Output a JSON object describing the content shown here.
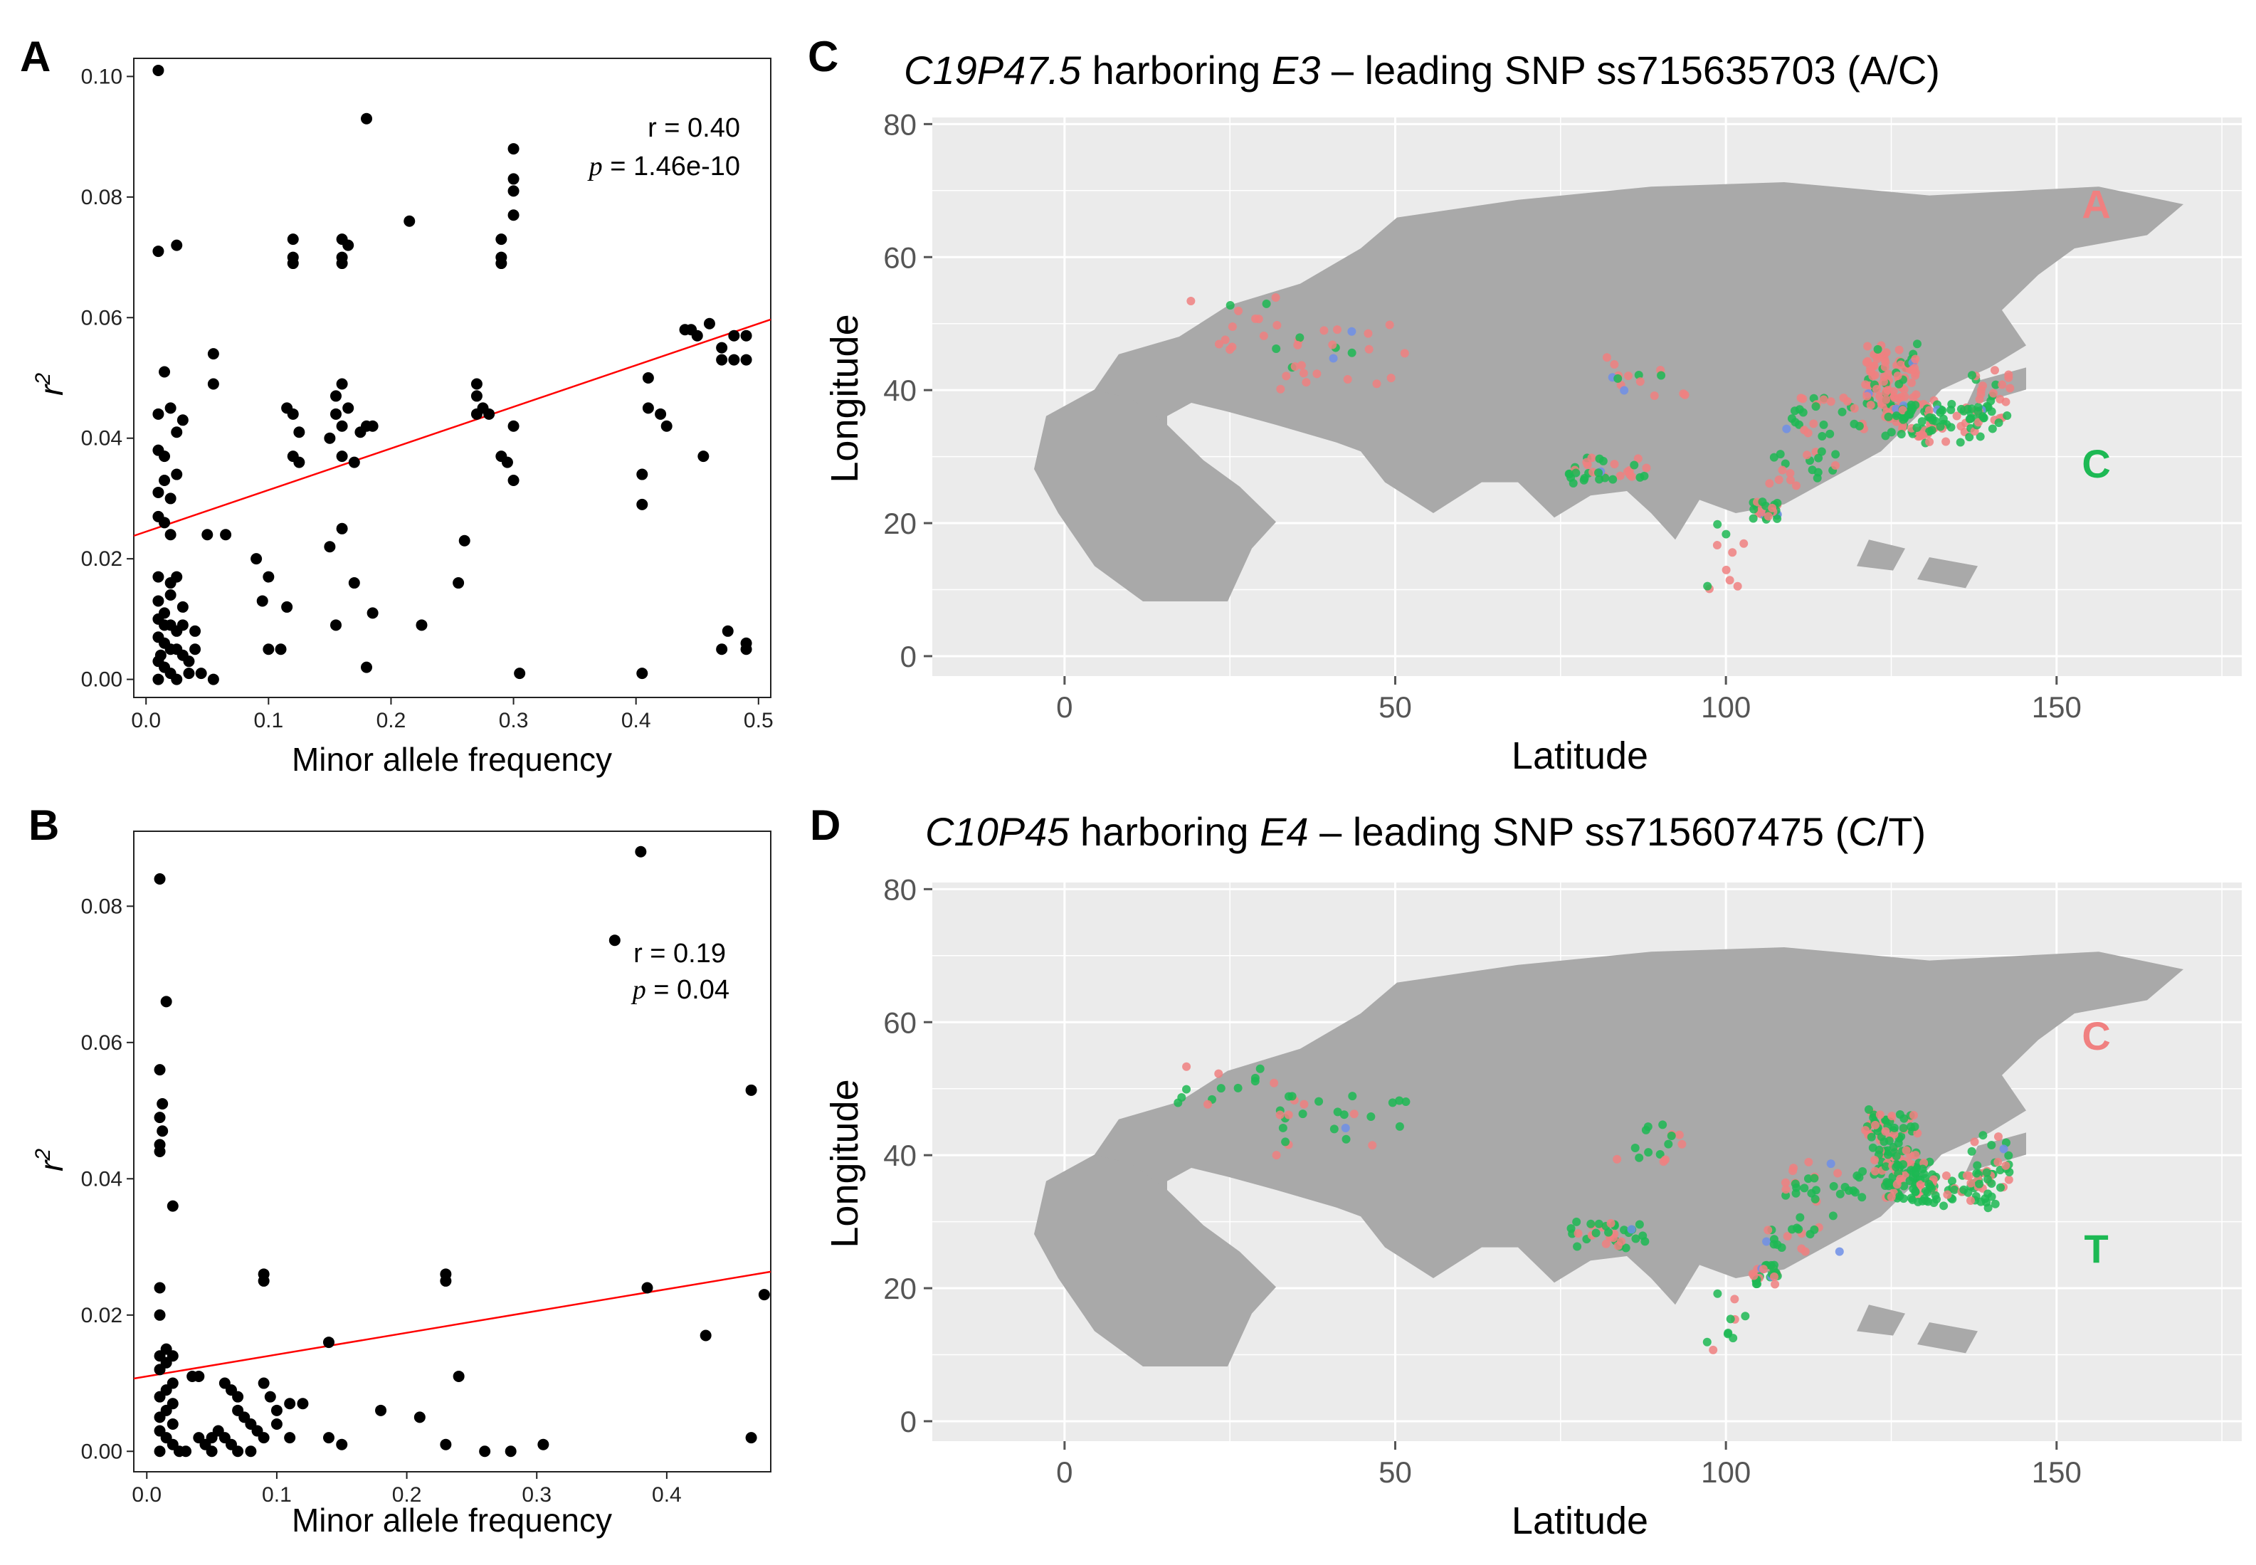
{
  "panels": {
    "A": "A",
    "B": "B",
    "C": "C",
    "D": "D"
  },
  "colors": {
    "red_allele": "#f08080",
    "green_allele": "#1db954",
    "blue_allele": "#6f8fe8",
    "land": "#a9a9a9",
    "map_bg": "#ebebeb",
    "fit_line": "#ff0000"
  },
  "chart_data": [
    {
      "panel": "A",
      "type": "scatter",
      "xlabel": "Minor allele frequency",
      "ylabel": "r",
      "ylabel_sup": "2",
      "xlim": [
        -0.01,
        0.51
      ],
      "ylim": [
        -0.003,
        0.103
      ],
      "xticks": [
        0,
        0.1,
        0.2,
        0.3,
        0.4,
        0.5
      ],
      "xtick_labels": [
        "0.0",
        "0.1",
        "0.2",
        "0.3",
        "0.4",
        "0.5"
      ],
      "yticks": [
        0,
        0.02,
        0.04,
        0.06,
        0.08,
        0.1
      ],
      "ytick_labels": [
        "0.00",
        "0.02",
        "0.04",
        "0.06",
        "0.08",
        "0.10"
      ],
      "stats": {
        "r_text": "r = 0.40",
        "p_symbol": "p",
        "p_value": " = 1.46e-10"
      },
      "fit": {
        "intercept": 0.0245,
        "slope": 0.069
      },
      "points": [
        [
          0.01,
          0.101
        ],
        [
          0.01,
          0.071
        ],
        [
          0.025,
          0.072
        ],
        [
          0.015,
          0.051
        ],
        [
          0.02,
          0.045
        ],
        [
          0.01,
          0.044
        ],
        [
          0.01,
          0.038
        ],
        [
          0.015,
          0.037
        ],
        [
          0.015,
          0.033
        ],
        [
          0.01,
          0.031
        ],
        [
          0.02,
          0.03
        ],
        [
          0.01,
          0.027
        ],
        [
          0.015,
          0.026
        ],
        [
          0.02,
          0.024
        ],
        [
          0.03,
          0.043
        ],
        [
          0.025,
          0.034
        ],
        [
          0.025,
          0.041
        ],
        [
          0.055,
          0.054
        ],
        [
          0.055,
          0.049
        ],
        [
          0.05,
          0.024
        ],
        [
          0.065,
          0.024
        ],
        [
          0.01,
          0.017
        ],
        [
          0.02,
          0.016
        ],
        [
          0.025,
          0.017
        ],
        [
          0.02,
          0.014
        ],
        [
          0.01,
          0.013
        ],
        [
          0.03,
          0.012
        ],
        [
          0.015,
          0.011
        ],
        [
          0.01,
          0.01
        ],
        [
          0.02,
          0.009
        ],
        [
          0.025,
          0.008
        ],
        [
          0.01,
          0.007
        ],
        [
          0.015,
          0.006
        ],
        [
          0.02,
          0.005
        ],
        [
          0.03,
          0.004
        ],
        [
          0.01,
          0.003
        ],
        [
          0.015,
          0.002
        ],
        [
          0.02,
          0.001
        ],
        [
          0.025,
          0.0
        ],
        [
          0.01,
          0.0
        ],
        [
          0.035,
          0.003
        ],
        [
          0.04,
          0.008
        ],
        [
          0.03,
          0.009
        ],
        [
          0.045,
          0.001
        ],
        [
          0.055,
          0.0
        ],
        [
          0.04,
          0.005
        ],
        [
          0.035,
          0.001
        ],
        [
          0.025,
          0.005
        ],
        [
          0.015,
          0.009
        ],
        [
          0.012,
          0.004
        ],
        [
          0.09,
          0.02
        ],
        [
          0.1,
          0.017
        ],
        [
          0.095,
          0.013
        ],
        [
          0.115,
          0.012
        ],
        [
          0.1,
          0.005
        ],
        [
          0.11,
          0.005
        ],
        [
          0.12,
          0.073
        ],
        [
          0.12,
          0.07
        ],
        [
          0.12,
          0.069
        ],
        [
          0.115,
          0.045
        ],
        [
          0.12,
          0.044
        ],
        [
          0.125,
          0.041
        ],
        [
          0.12,
          0.037
        ],
        [
          0.125,
          0.036
        ],
        [
          0.16,
          0.073
        ],
        [
          0.16,
          0.07
        ],
        [
          0.16,
          0.069
        ],
        [
          0.165,
          0.072
        ],
        [
          0.155,
          0.047
        ],
        [
          0.16,
          0.049
        ],
        [
          0.155,
          0.044
        ],
        [
          0.165,
          0.045
        ],
        [
          0.16,
          0.042
        ],
        [
          0.15,
          0.04
        ],
        [
          0.16,
          0.037
        ],
        [
          0.17,
          0.036
        ],
        [
          0.15,
          0.022
        ],
        [
          0.16,
          0.025
        ],
        [
          0.17,
          0.016
        ],
        [
          0.155,
          0.009
        ],
        [
          0.175,
          0.041
        ],
        [
          0.18,
          0.093
        ],
        [
          0.18,
          0.042
        ],
        [
          0.185,
          0.042
        ],
        [
          0.185,
          0.011
        ],
        [
          0.18,
          0.002
        ],
        [
          0.215,
          0.076
        ],
        [
          0.225,
          0.009
        ],
        [
          0.26,
          0.023
        ],
        [
          0.255,
          0.016
        ],
        [
          0.27,
          0.049
        ],
        [
          0.27,
          0.047
        ],
        [
          0.275,
          0.045
        ],
        [
          0.27,
          0.044
        ],
        [
          0.28,
          0.044
        ],
        [
          0.29,
          0.073
        ],
        [
          0.29,
          0.069
        ],
        [
          0.29,
          0.07
        ],
        [
          0.3,
          0.088
        ],
        [
          0.3,
          0.083
        ],
        [
          0.3,
          0.081
        ],
        [
          0.3,
          0.077
        ],
        [
          0.3,
          0.042
        ],
        [
          0.29,
          0.037
        ],
        [
          0.295,
          0.036
        ],
        [
          0.3,
          0.033
        ],
        [
          0.305,
          0.001
        ],
        [
          0.41,
          0.05
        ],
        [
          0.41,
          0.045
        ],
        [
          0.405,
          0.034
        ],
        [
          0.405,
          0.029
        ],
        [
          0.405,
          0.001
        ],
        [
          0.42,
          0.044
        ],
        [
          0.425,
          0.042
        ],
        [
          0.44,
          0.058
        ],
        [
          0.445,
          0.058
        ],
        [
          0.45,
          0.057
        ],
        [
          0.46,
          0.059
        ],
        [
          0.47,
          0.055
        ],
        [
          0.48,
          0.057
        ],
        [
          0.47,
          0.053
        ],
        [
          0.48,
          0.053
        ],
        [
          0.49,
          0.057
        ],
        [
          0.49,
          0.053
        ],
        [
          0.455,
          0.037
        ],
        [
          0.47,
          0.005
        ],
        [
          0.475,
          0.008
        ],
        [
          0.49,
          0.005
        ],
        [
          0.49,
          0.006
        ]
      ]
    },
    {
      "panel": "B",
      "type": "scatter",
      "xlabel": "Minor allele frequency",
      "ylabel": "r",
      "ylabel_sup": "2",
      "xlim": [
        -0.01,
        0.48
      ],
      "ylim": [
        -0.003,
        0.091
      ],
      "xticks": [
        0,
        0.1,
        0.2,
        0.3,
        0.4
      ],
      "xtick_labels": [
        "0.0",
        "0.1",
        "0.2",
        "0.3",
        "0.4"
      ],
      "yticks": [
        0,
        0.02,
        0.04,
        0.06,
        0.08
      ],
      "ytick_labels": [
        "0.00",
        "0.02",
        "0.04",
        "0.06",
        "0.08"
      ],
      "stats": {
        "r_text": "r = 0.19",
        "p_symbol": "p",
        "p_value": " = 0.04"
      },
      "fit": {
        "intercept": 0.011,
        "slope": 0.032
      },
      "points": [
        [
          0.01,
          0.084
        ],
        [
          0.015,
          0.066
        ],
        [
          0.01,
          0.056
        ],
        [
          0.012,
          0.051
        ],
        [
          0.01,
          0.049
        ],
        [
          0.012,
          0.047
        ],
        [
          0.01,
          0.045
        ],
        [
          0.01,
          0.044
        ],
        [
          0.02,
          0.036
        ],
        [
          0.01,
          0.024
        ],
        [
          0.01,
          0.02
        ],
        [
          0.015,
          0.015
        ],
        [
          0.01,
          0.014
        ],
        [
          0.02,
          0.014
        ],
        [
          0.015,
          0.013
        ],
        [
          0.01,
          0.012
        ],
        [
          0.02,
          0.01
        ],
        [
          0.015,
          0.009
        ],
        [
          0.01,
          0.008
        ],
        [
          0.02,
          0.007
        ],
        [
          0.015,
          0.006
        ],
        [
          0.01,
          0.005
        ],
        [
          0.02,
          0.004
        ],
        [
          0.01,
          0.003
        ],
        [
          0.015,
          0.002
        ],
        [
          0.02,
          0.001
        ],
        [
          0.01,
          0.0
        ],
        [
          0.025,
          0.0
        ],
        [
          0.03,
          0.0
        ],
        [
          0.035,
          0.011
        ],
        [
          0.04,
          0.011
        ],
        [
          0.04,
          0.002
        ],
        [
          0.045,
          0.001
        ],
        [
          0.05,
          0.0
        ],
        [
          0.05,
          0.002
        ],
        [
          0.055,
          0.003
        ],
        [
          0.06,
          0.002
        ],
        [
          0.06,
          0.01
        ],
        [
          0.065,
          0.009
        ],
        [
          0.07,
          0.008
        ],
        [
          0.07,
          0.006
        ],
        [
          0.075,
          0.005
        ],
        [
          0.08,
          0.004
        ],
        [
          0.085,
          0.003
        ],
        [
          0.09,
          0.002
        ],
        [
          0.065,
          0.001
        ],
        [
          0.07,
          0.0
        ],
        [
          0.08,
          0.0
        ],
        [
          0.09,
          0.026
        ],
        [
          0.09,
          0.025
        ],
        [
          0.09,
          0.01
        ],
        [
          0.095,
          0.008
        ],
        [
          0.1,
          0.006
        ],
        [
          0.11,
          0.007
        ],
        [
          0.1,
          0.004
        ],
        [
          0.12,
          0.007
        ],
        [
          0.11,
          0.002
        ],
        [
          0.14,
          0.016
        ],
        [
          0.14,
          0.002
        ],
        [
          0.15,
          0.001
        ],
        [
          0.18,
          0.006
        ],
        [
          0.21,
          0.005
        ],
        [
          0.23,
          0.026
        ],
        [
          0.23,
          0.025
        ],
        [
          0.23,
          0.001
        ],
        [
          0.24,
          0.011
        ],
        [
          0.26,
          0.0
        ],
        [
          0.28,
          0.0
        ],
        [
          0.305,
          0.001
        ],
        [
          0.36,
          0.075
        ],
        [
          0.38,
          0.088
        ],
        [
          0.385,
          0.024
        ],
        [
          0.43,
          0.017
        ],
        [
          0.465,
          0.053
        ],
        [
          0.475,
          0.023
        ],
        [
          0.465,
          0.002
        ]
      ]
    },
    {
      "panel": "C",
      "type": "scatter",
      "title_parts": [
        "C19P47.5",
        " harboring ",
        "E3",
        " – leading SNP ss715635703 (A/C)"
      ],
      "xlabel": "Latitude",
      "ylabel": "Longitude",
      "xlim": [
        -20,
        178
      ],
      "ylim": [
        -3,
        81
      ],
      "xticks": [
        0,
        50,
        100,
        150
      ],
      "yticks": [
        0,
        20,
        40,
        60,
        80
      ],
      "allele_labels": [
        {
          "text": "A",
          "color": "red"
        },
        {
          "text": "C",
          "color": "green"
        }
      ]
    },
    {
      "panel": "D",
      "type": "scatter",
      "title_parts": [
        "C10P45",
        " harboring ",
        "E4",
        " – leading SNP ss715607475 (C/T)"
      ],
      "xlabel": "Latitude",
      "ylabel": "Longitude",
      "xlim": [
        -20,
        178
      ],
      "ylim": [
        -3,
        81
      ],
      "xticks": [
        0,
        50,
        100,
        150
      ],
      "yticks": [
        0,
        20,
        40,
        60,
        80
      ],
      "allele_labels": [
        {
          "text": "C",
          "color": "red"
        },
        {
          "text": "T",
          "color": "green"
        }
      ]
    }
  ]
}
